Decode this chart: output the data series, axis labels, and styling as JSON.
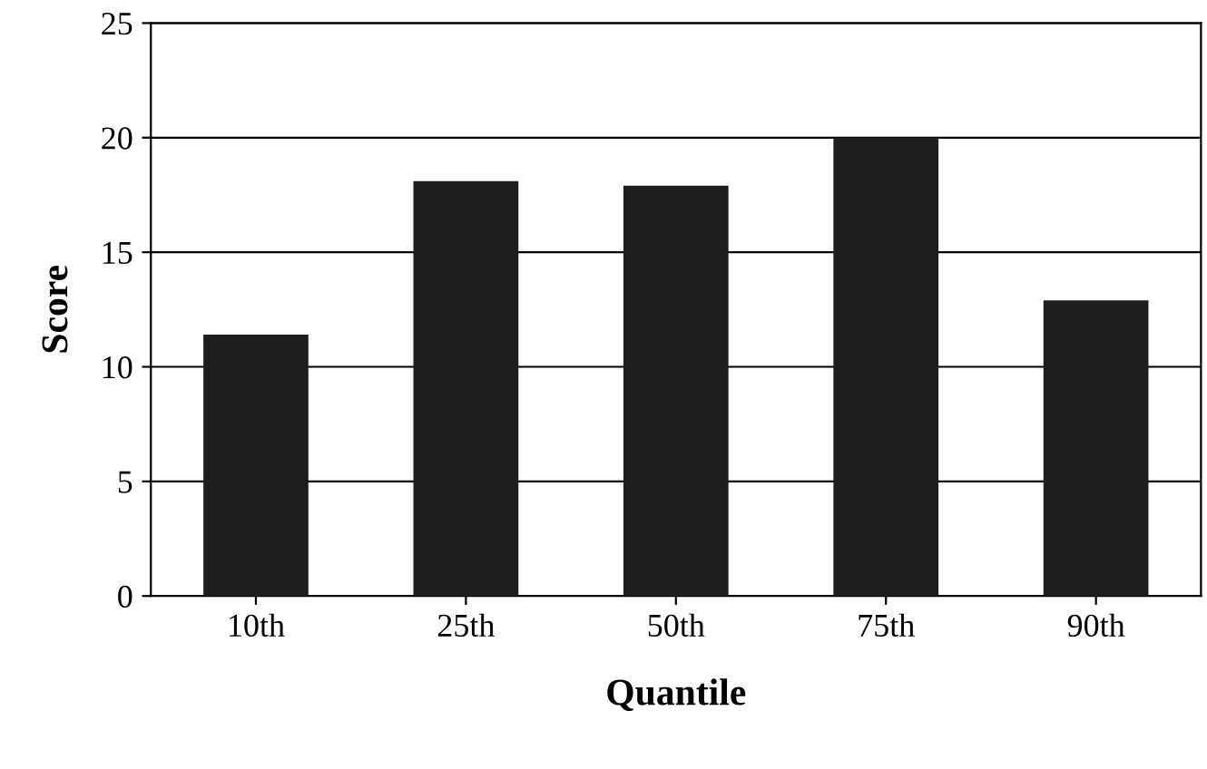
{
  "chart_data": {
    "type": "bar",
    "xlabel": "Quantile",
    "ylabel": "Score",
    "categories": [
      "10th",
      "25th",
      "50th",
      "75th",
      "90th"
    ],
    "values": [
      11.4,
      18.1,
      17.9,
      20.0,
      12.9
    ],
    "color": "#1e1e1e",
    "ylim": [
      0,
      25
    ],
    "yticks": [
      0,
      5,
      10,
      15,
      20,
      25
    ],
    "grid": "y",
    "legend": false
  }
}
